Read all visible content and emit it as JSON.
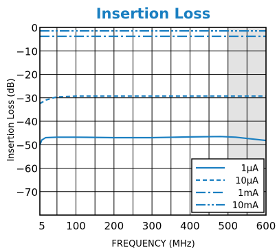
{
  "chart_data": {
    "type": "line",
    "title": "Insertion Loss",
    "xlabel": "FREQUENCY (MHz)",
    "ylabel": "Insertion Loss (dB)",
    "xlim": [
      5,
      600
    ],
    "ylim": [
      -80,
      0
    ],
    "x_ticks": [
      5,
      100,
      200,
      300,
      400,
      500,
      600
    ],
    "y_ticks": [
      0,
      -10,
      -20,
      -30,
      -40,
      -50,
      -60,
      -70
    ],
    "x_tick_labels": [
      "5",
      "100",
      "200",
      "300",
      "400",
      "500",
      "600"
    ],
    "y_tick_labels": [
      "0",
      "−10",
      "−20",
      "−30",
      "−40",
      "−50",
      "−60",
      "−70"
    ],
    "grid": true,
    "shaded_range": [
      500,
      600
    ],
    "legend_position": "bottom-right",
    "series": [
      {
        "name": "1μA",
        "color": "#1a7fc1",
        "dash": "solid",
        "x": [
          5,
          10,
          20,
          50,
          100,
          200,
          300,
          400,
          480,
          520,
          560,
          600
        ],
        "y": [
          -50,
          -48,
          -47,
          -46.8,
          -46.8,
          -47,
          -47,
          -46.7,
          -46.5,
          -46.8,
          -47.5,
          -48.2
        ]
      },
      {
        "name": "10μA",
        "color": "#1a7fc1",
        "dash": "dash",
        "x": [
          5,
          20,
          50,
          100,
          200,
          300,
          400,
          500,
          600
        ],
        "y": [
          -32.5,
          -31,
          -29.6,
          -29.3,
          -29.3,
          -29.3,
          -29.3,
          -29.3,
          -29.3
        ]
      },
      {
        "name": "1mA",
        "color": "#1a7fc1",
        "dash": "dashdot",
        "x": [
          5,
          100,
          200,
          300,
          400,
          500,
          600
        ],
        "y": [
          -3.8,
          -3.8,
          -3.8,
          -3.8,
          -3.8,
          -3.8,
          -3.8
        ]
      },
      {
        "name": "10mA",
        "color": "#1a7fc1",
        "dash": "dashdotdot",
        "x": [
          5,
          100,
          200,
          300,
          400,
          500,
          600
        ],
        "y": [
          -1.5,
          -1.5,
          -1.5,
          -1.5,
          -1.5,
          -1.5,
          -1.5
        ]
      }
    ]
  }
}
